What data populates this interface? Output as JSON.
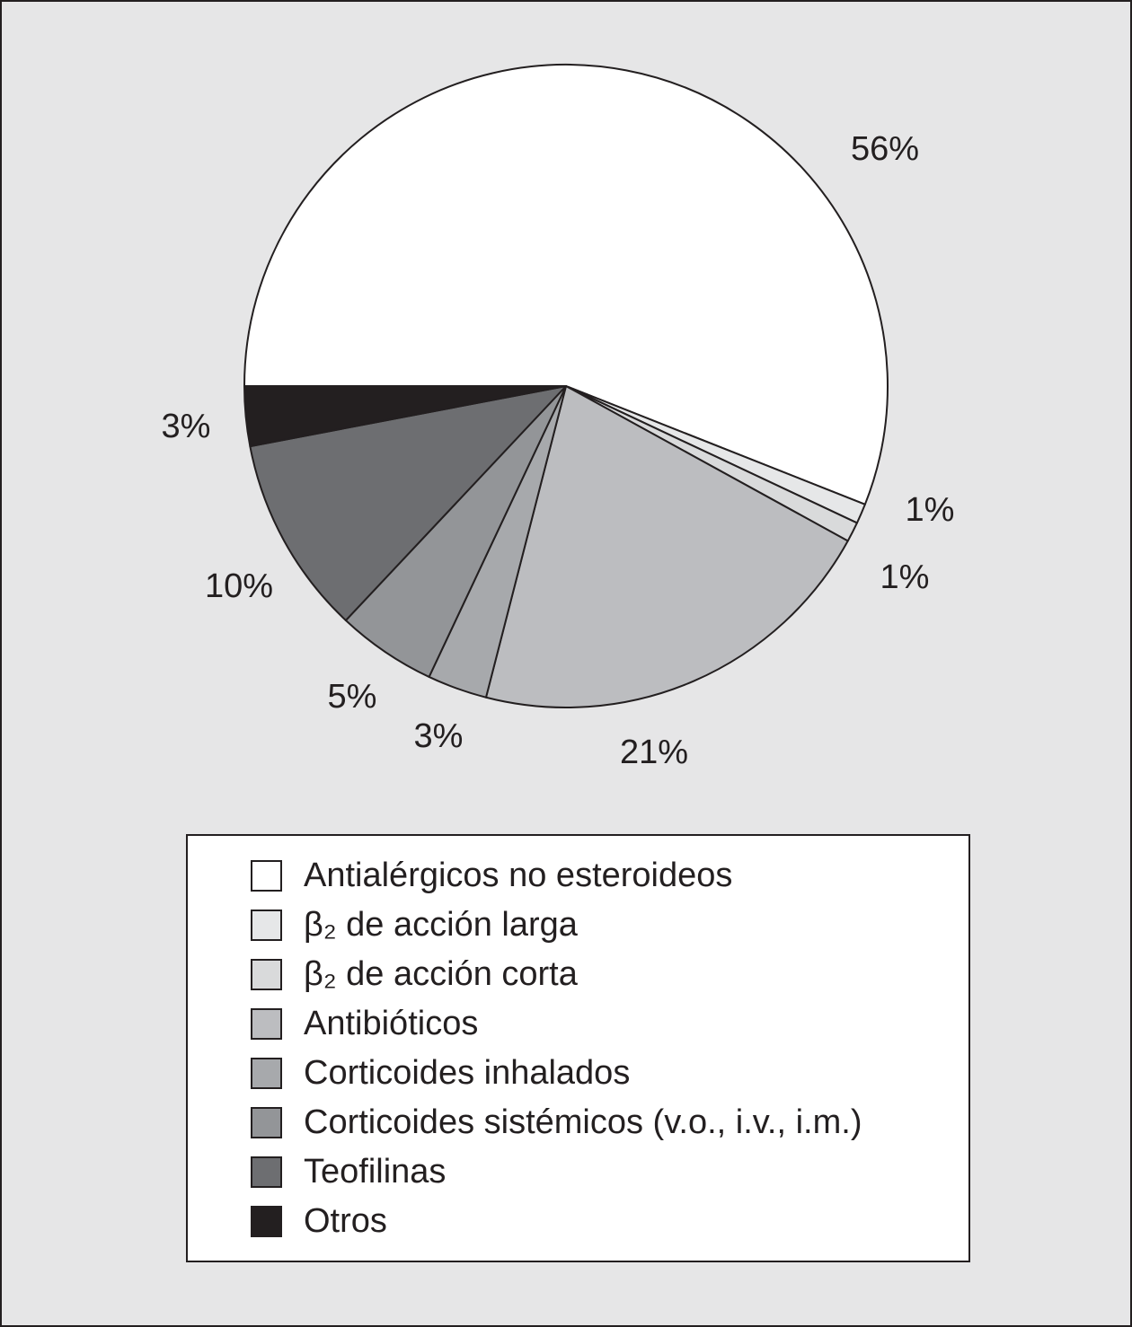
{
  "chart_data": {
    "type": "pie",
    "categories": [
      "Antialérgicos no esteroideos",
      "β₂ de acción larga",
      "β₂ de acción corta",
      "Antibióticos",
      "Corticoides inhalados",
      "Corticoides sistémicos (v.o., i.v., i.m.)",
      "Teofilinas",
      "Otros"
    ],
    "values": [
      56,
      1,
      1,
      21,
      3,
      5,
      10,
      3
    ],
    "value_labels": [
      "56%",
      "1%",
      "1%",
      "21%",
      "3%",
      "5%",
      "10%",
      "3%"
    ],
    "colors": [
      "#ffffff",
      "#e6e7e8",
      "#d9dadb",
      "#bcbdc0",
      "#a7a9ac",
      "#939598",
      "#6d6e71",
      "#231f20"
    ]
  }
}
